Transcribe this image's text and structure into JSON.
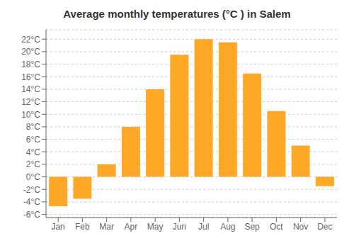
{
  "chart_data": {
    "type": "bar",
    "title": "Average monthly temperatures (°C ) in Salem",
    "categories": [
      "Jan",
      "Feb",
      "Mar",
      "Apr",
      "May",
      "Jun",
      "Jul",
      "Aug",
      "Sep",
      "Oct",
      "Nov",
      "Dec"
    ],
    "values": [
      -4.7,
      -3.5,
      2.0,
      8.0,
      14.0,
      19.5,
      22.0,
      21.5,
      16.5,
      10.5,
      5.0,
      -1.5
    ],
    "color": "#FFA726",
    "ylim": [
      -6.5,
      23.5
    ],
    "yticks": [
      {
        "value": -6,
        "label": "-6°C"
      },
      {
        "value": -4,
        "label": "-4°C"
      },
      {
        "value": -2,
        "label": "-2°C"
      },
      {
        "value": 0,
        "label": "0°C"
      },
      {
        "value": 2,
        "label": "2°C"
      },
      {
        "value": 4,
        "label": "4°C"
      },
      {
        "value": 6,
        "label": "6°C"
      },
      {
        "value": 8,
        "label": "8°C"
      },
      {
        "value": 10,
        "label": "10°C"
      },
      {
        "value": 12,
        "label": "12°C"
      },
      {
        "value": 14,
        "label": "14°C"
      },
      {
        "value": 16,
        "label": "16°C"
      },
      {
        "value": 18,
        "label": "18°C"
      },
      {
        "value": 20,
        "label": "20°C"
      },
      {
        "value": 22,
        "label": "22°C"
      }
    ],
    "grid": true
  }
}
